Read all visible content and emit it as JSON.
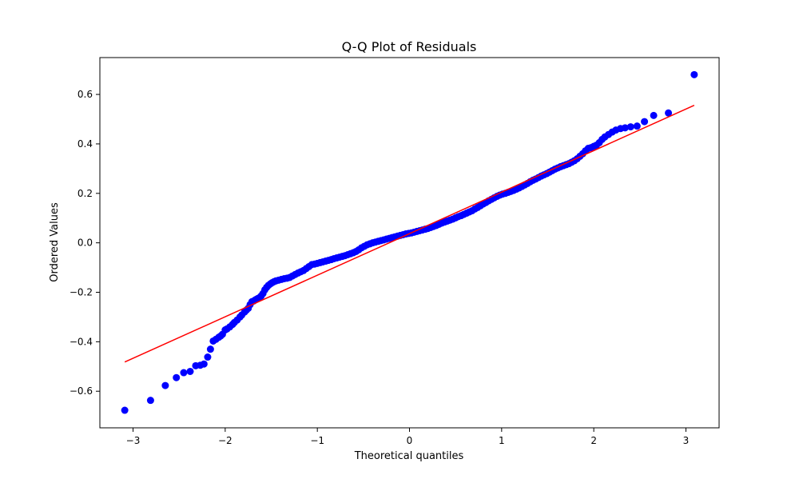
{
  "chart_data": {
    "type": "scatter",
    "title": "Q-Q Plot of Residuals",
    "xlabel": "Theoretical quantiles",
    "ylabel": "Ordered Values",
    "xlim": [
      -3.36,
      3.36
    ],
    "ylim": [
      -0.748,
      0.749
    ],
    "xticks": [
      -3,
      -2,
      -1,
      0,
      1,
      2,
      3
    ],
    "xtick_labels": [
      "−3",
      "−2",
      "−1",
      "0",
      "1",
      "2",
      "3"
    ],
    "yticks": [
      -0.6,
      -0.4,
      -0.2,
      0.0,
      0.2,
      0.4,
      0.6
    ],
    "ytick_labels": [
      "−0.6",
      "−0.4",
      "−0.2",
      "0.0",
      "0.2",
      "0.4",
      "0.6"
    ],
    "grid": false,
    "series": [
      {
        "kind": "points",
        "color": "#0000ff",
        "x": [
          -3.09,
          -2.81,
          -2.65,
          -2.53,
          -2.45,
          -2.38,
          -2.32,
          -2.27,
          -2.23,
          -2.19,
          -2.16,
          -2.13,
          -2.1,
          -2.07,
          -2.05,
          -2.03,
          -2.0,
          -1.98,
          -1.95,
          -1.92,
          -1.9,
          -1.87,
          -1.84,
          -1.82,
          -1.79,
          -1.77,
          -1.75,
          -1.73,
          -1.71,
          -1.69,
          -1.67,
          -1.65,
          -1.63,
          -1.61,
          -1.59,
          -1.57,
          -1.55,
          -1.53,
          -1.51,
          -1.49,
          -1.47,
          -1.45,
          -1.42,
          -1.39,
          -1.36,
          -1.33,
          -1.3,
          -1.27,
          -1.24,
          -1.21,
          -1.18,
          -1.15,
          -1.12,
          -1.09,
          -1.06,
          -1.03,
          -1.0,
          -0.97,
          -0.94,
          -0.91,
          -0.88,
          -0.85,
          -0.82,
          -0.79,
          -0.76,
          -0.73,
          -0.7,
          -0.67,
          -0.64,
          -0.61,
          -0.58,
          -0.55,
          -0.52,
          -0.49,
          -0.46,
          -0.43,
          -0.4,
          -0.37,
          -0.34,
          -0.31,
          -0.28,
          -0.25,
          -0.22,
          -0.19,
          -0.16,
          -0.13,
          -0.1,
          -0.07,
          -0.04,
          -0.01,
          0.02,
          0.05,
          0.08,
          0.11,
          0.14,
          0.17,
          0.2,
          0.23,
          0.26,
          0.29,
          0.32,
          0.35,
          0.38,
          0.41,
          0.44,
          0.47,
          0.5,
          0.53,
          0.56,
          0.59,
          0.62,
          0.65,
          0.68,
          0.71,
          0.74,
          0.77,
          0.8,
          0.83,
          0.86,
          0.89,
          0.92,
          0.95,
          0.98,
          1.01,
          1.04,
          1.07,
          1.1,
          1.13,
          1.16,
          1.19,
          1.22,
          1.25,
          1.28,
          1.31,
          1.34,
          1.37,
          1.4,
          1.43,
          1.46,
          1.49,
          1.52,
          1.55,
          1.58,
          1.61,
          1.64,
          1.67,
          1.7,
          1.73,
          1.76,
          1.79,
          1.82,
          1.85,
          1.88,
          1.91,
          1.94,
          1.97,
          2.0,
          2.03,
          2.06,
          2.09,
          2.12,
          2.16,
          2.2,
          2.24,
          2.29,
          2.34,
          2.4,
          2.47,
          2.55,
          2.65,
          2.81,
          3.09
        ],
        "y": [
          -0.677,
          -0.637,
          -0.577,
          -0.545,
          -0.525,
          -0.52,
          -0.497,
          -0.495,
          -0.49,
          -0.462,
          -0.43,
          -0.397,
          -0.39,
          -0.382,
          -0.377,
          -0.37,
          -0.352,
          -0.348,
          -0.34,
          -0.33,
          -0.322,
          -0.312,
          -0.3,
          -0.292,
          -0.28,
          -0.272,
          -0.265,
          -0.25,
          -0.238,
          -0.235,
          -0.23,
          -0.226,
          -0.222,
          -0.215,
          -0.205,
          -0.19,
          -0.18,
          -0.172,
          -0.166,
          -0.161,
          -0.157,
          -0.154,
          -0.151,
          -0.148,
          -0.145,
          -0.143,
          -0.14,
          -0.134,
          -0.128,
          -0.122,
          -0.117,
          -0.112,
          -0.104,
          -0.096,
          -0.088,
          -0.086,
          -0.083,
          -0.08,
          -0.077,
          -0.074,
          -0.071,
          -0.068,
          -0.064,
          -0.061,
          -0.058,
          -0.055,
          -0.052,
          -0.048,
          -0.044,
          -0.04,
          -0.035,
          -0.028,
          -0.02,
          -0.014,
          -0.008,
          -0.004,
          0.0,
          0.003,
          0.006,
          0.009,
          0.012,
          0.015,
          0.018,
          0.021,
          0.024,
          0.027,
          0.03,
          0.033,
          0.036,
          0.038,
          0.04,
          0.043,
          0.046,
          0.049,
          0.052,
          0.055,
          0.058,
          0.062,
          0.066,
          0.07,
          0.075,
          0.08,
          0.084,
          0.088,
          0.092,
          0.096,
          0.101,
          0.106,
          0.11,
          0.115,
          0.12,
          0.125,
          0.13,
          0.137,
          0.143,
          0.15,
          0.157,
          0.163,
          0.17,
          0.176,
          0.182,
          0.188,
          0.193,
          0.197,
          0.2,
          0.204,
          0.208,
          0.212,
          0.217,
          0.222,
          0.228,
          0.234,
          0.24,
          0.247,
          0.253,
          0.258,
          0.264,
          0.27,
          0.275,
          0.28,
          0.286,
          0.292,
          0.298,
          0.303,
          0.308,
          0.312,
          0.316,
          0.32,
          0.326,
          0.332,
          0.34,
          0.35,
          0.36,
          0.372,
          0.382,
          0.385,
          0.39,
          0.395,
          0.405,
          0.418,
          0.428,
          0.438,
          0.448,
          0.456,
          0.462,
          0.465,
          0.469,
          0.472,
          0.49,
          0.515,
          0.525,
          0.68
        ]
      },
      {
        "kind": "line",
        "color": "#ff0000",
        "x": [
          -3.09,
          3.09
        ],
        "y": [
          -0.482,
          0.556
        ]
      }
    ]
  }
}
